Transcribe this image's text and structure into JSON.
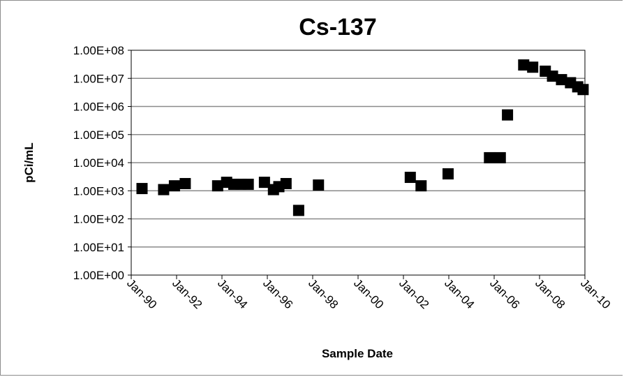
{
  "chart_data": {
    "type": "scatter",
    "title": "Cs-137",
    "xlabel": "Sample Date",
    "ylabel": "pCi/mL",
    "x_ticks": [
      "Jan-90",
      "Jan-92",
      "Jan-94",
      "Jan-96",
      "Jan-98",
      "Jan-00",
      "Jan-02",
      "Jan-04",
      "Jan-06",
      "Jan-08",
      "Jan-10"
    ],
    "y_ticks": [
      "1.00E+00",
      "1.00E+01",
      "1.00E+02",
      "1.00E+03",
      "1.00E+04",
      "1.00E+05",
      "1.00E+06",
      "1.00E+07",
      "1.00E+08"
    ],
    "y_scale": "log",
    "ylim": [
      1,
      100000000
    ],
    "xlim": [
      "1990-01",
      "2011-01"
    ],
    "grid": "horizontal",
    "legend": "none",
    "marker": "square",
    "marker_color": "#000000",
    "series": [
      {
        "points": [
          {
            "x": "1990-07",
            "y": 1200
          },
          {
            "x": "1991-07",
            "y": 1100
          },
          {
            "x": "1992-01",
            "y": 1500
          },
          {
            "x": "1992-07",
            "y": 1800
          },
          {
            "x": "1994-01",
            "y": 1500
          },
          {
            "x": "1994-06",
            "y": 2000
          },
          {
            "x": "1994-10",
            "y": 1700
          },
          {
            "x": "1995-02",
            "y": 1700
          },
          {
            "x": "1995-06",
            "y": 1700
          },
          {
            "x": "1996-03",
            "y": 2000
          },
          {
            "x": "1996-08",
            "y": 1100
          },
          {
            "x": "1996-11",
            "y": 1400
          },
          {
            "x": "1997-03",
            "y": 1800
          },
          {
            "x": "1997-10",
            "y": 200
          },
          {
            "x": "1998-09",
            "y": 1600
          },
          {
            "x": "2002-12",
            "y": 3000
          },
          {
            "x": "2003-06",
            "y": 1500
          },
          {
            "x": "2004-09",
            "y": 4000
          },
          {
            "x": "2006-08",
            "y": 15000
          },
          {
            "x": "2007-02",
            "y": 15000
          },
          {
            "x": "2007-06",
            "y": 500000
          },
          {
            "x": "2008-03",
            "y": 30000000
          },
          {
            "x": "2008-08",
            "y": 25000000
          },
          {
            "x": "2009-03",
            "y": 18000000
          },
          {
            "x": "2009-07",
            "y": 12000000
          },
          {
            "x": "2009-12",
            "y": 9000000
          },
          {
            "x": "2010-05",
            "y": 7000000
          },
          {
            "x": "2010-09",
            "y": 5000000
          },
          {
            "x": "2010-12",
            "y": 4000000
          }
        ]
      }
    ]
  }
}
